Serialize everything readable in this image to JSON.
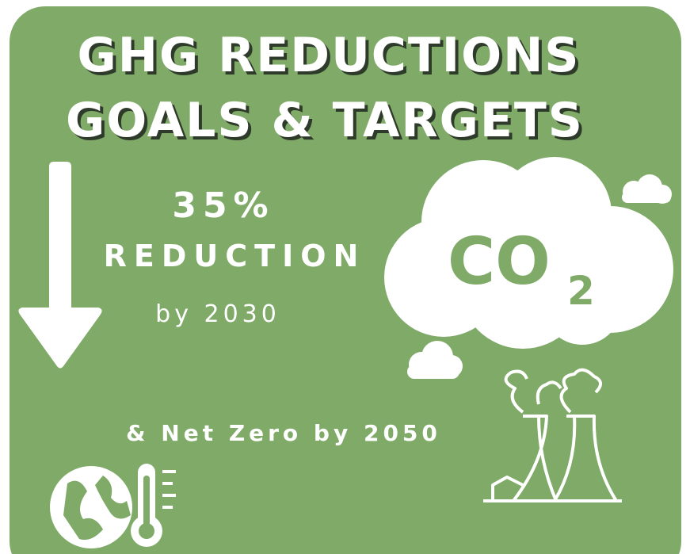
{
  "title": {
    "line1": "GHG REDUCTIONS",
    "line2": "GOALS & TARGETS"
  },
  "goal": {
    "amount": "35%",
    "label": "REDUCTION",
    "year": "by 2030"
  },
  "net_zero": "& Net Zero by 2050",
  "cloud": {
    "text": "CO",
    "subscript": "2"
  }
}
